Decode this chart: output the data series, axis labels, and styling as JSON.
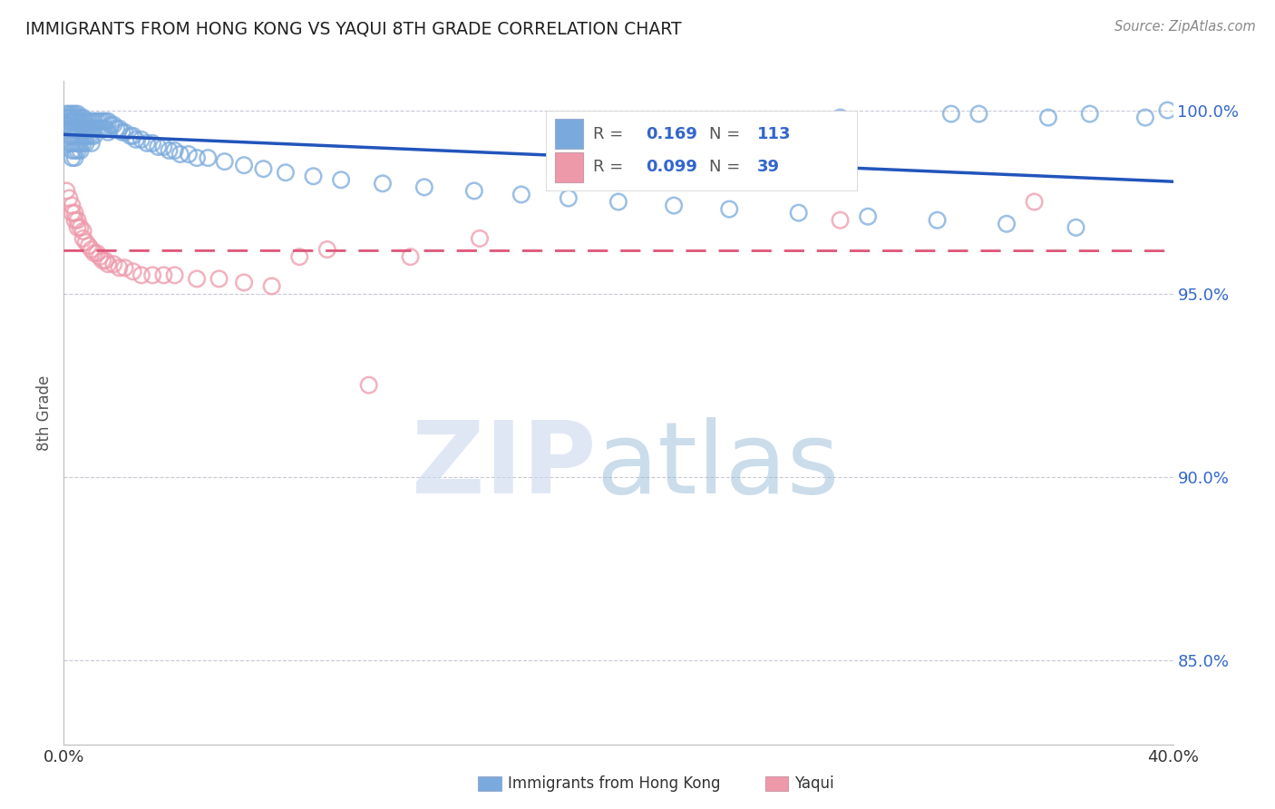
{
  "title": "IMMIGRANTS FROM HONG KONG VS YAQUI 8TH GRADE CORRELATION CHART",
  "source": "Source: ZipAtlas.com",
  "ylabel_left": "8th Grade",
  "legend_label1": "Immigrants from Hong Kong",
  "legend_label2": "Yaqui",
  "R1": 0.169,
  "N1": 113,
  "R2": 0.099,
  "N2": 39,
  "xlim": [
    0.0,
    0.4
  ],
  "ylim": [
    0.827,
    1.008
  ],
  "yticks": [
    0.85,
    0.9,
    0.95,
    1.0
  ],
  "ytick_labels": [
    "85.0%",
    "90.0%",
    "95.0%",
    "100.0%"
  ],
  "xtick_vals": [
    0.0,
    0.05,
    0.1,
    0.15,
    0.2,
    0.25,
    0.3,
    0.35,
    0.4
  ],
  "color1": "#7aaadd",
  "color2": "#ee99aa",
  "trendline1_color": "#2255bb",
  "trendline2_color": "#dd5577",
  "watermark_zip_color": "#ccd8ee",
  "watermark_atlas_color": "#99bbd8",
  "background_color": "#ffffff",
  "hk_x": [
    0.001,
    0.001,
    0.001,
    0.002,
    0.002,
    0.002,
    0.002,
    0.002,
    0.002,
    0.003,
    0.003,
    0.003,
    0.003,
    0.003,
    0.003,
    0.003,
    0.003,
    0.004,
    0.004,
    0.004,
    0.004,
    0.004,
    0.004,
    0.004,
    0.004,
    0.005,
    0.005,
    0.005,
    0.005,
    0.005,
    0.005,
    0.005,
    0.006,
    0.006,
    0.006,
    0.006,
    0.006,
    0.006,
    0.007,
    0.007,
    0.007,
    0.007,
    0.007,
    0.008,
    0.008,
    0.008,
    0.008,
    0.009,
    0.009,
    0.009,
    0.01,
    0.01,
    0.01,
    0.01,
    0.011,
    0.011,
    0.011,
    0.012,
    0.012,
    0.013,
    0.013,
    0.014,
    0.014,
    0.015,
    0.015,
    0.016,
    0.016,
    0.017,
    0.018,
    0.019,
    0.02,
    0.021,
    0.022,
    0.024,
    0.025,
    0.026,
    0.028,
    0.03,
    0.032,
    0.034,
    0.036,
    0.038,
    0.04,
    0.042,
    0.045,
    0.048,
    0.052,
    0.058,
    0.065,
    0.072,
    0.08,
    0.09,
    0.1,
    0.115,
    0.13,
    0.148,
    0.165,
    0.182,
    0.2,
    0.22,
    0.24,
    0.265,
    0.29,
    0.315,
    0.34,
    0.365,
    0.32,
    0.28,
    0.33,
    0.355,
    0.37,
    0.39,
    0.398
  ],
  "hk_y": [
    0.999,
    0.998,
    0.996,
    0.999,
    0.998,
    0.997,
    0.995,
    0.993,
    0.991,
    0.999,
    0.998,
    0.997,
    0.995,
    0.993,
    0.991,
    0.989,
    0.987,
    0.999,
    0.998,
    0.997,
    0.995,
    0.993,
    0.991,
    0.989,
    0.987,
    0.999,
    0.998,
    0.997,
    0.995,
    0.993,
    0.991,
    0.989,
    0.998,
    0.997,
    0.995,
    0.993,
    0.991,
    0.989,
    0.998,
    0.997,
    0.995,
    0.993,
    0.991,
    0.997,
    0.995,
    0.993,
    0.991,
    0.997,
    0.995,
    0.993,
    0.997,
    0.995,
    0.993,
    0.991,
    0.997,
    0.995,
    0.993,
    0.997,
    0.995,
    0.997,
    0.995,
    0.997,
    0.995,
    0.997,
    0.995,
    0.997,
    0.994,
    0.996,
    0.996,
    0.995,
    0.995,
    0.994,
    0.994,
    0.993,
    0.993,
    0.992,
    0.992,
    0.991,
    0.991,
    0.99,
    0.99,
    0.989,
    0.989,
    0.988,
    0.988,
    0.987,
    0.987,
    0.986,
    0.985,
    0.984,
    0.983,
    0.982,
    0.981,
    0.98,
    0.979,
    0.978,
    0.977,
    0.976,
    0.975,
    0.974,
    0.973,
    0.972,
    0.971,
    0.97,
    0.969,
    0.968,
    0.999,
    0.998,
    0.999,
    0.998,
    0.999,
    0.998,
    1.0
  ],
  "yq_x": [
    0.001,
    0.002,
    0.003,
    0.003,
    0.004,
    0.004,
    0.005,
    0.005,
    0.006,
    0.007,
    0.007,
    0.008,
    0.009,
    0.01,
    0.011,
    0.012,
    0.013,
    0.014,
    0.015,
    0.016,
    0.018,
    0.02,
    0.022,
    0.025,
    0.028,
    0.032,
    0.036,
    0.04,
    0.048,
    0.056,
    0.065,
    0.075,
    0.085,
    0.095,
    0.11,
    0.125,
    0.15,
    0.28,
    0.35
  ],
  "yq_y": [
    0.978,
    0.976,
    0.974,
    0.972,
    0.972,
    0.97,
    0.97,
    0.968,
    0.968,
    0.967,
    0.965,
    0.964,
    0.963,
    0.962,
    0.961,
    0.961,
    0.96,
    0.959,
    0.959,
    0.958,
    0.958,
    0.957,
    0.957,
    0.956,
    0.955,
    0.955,
    0.955,
    0.955,
    0.954,
    0.954,
    0.953,
    0.952,
    0.96,
    0.962,
    0.925,
    0.96,
    0.965,
    0.97,
    0.975
  ]
}
